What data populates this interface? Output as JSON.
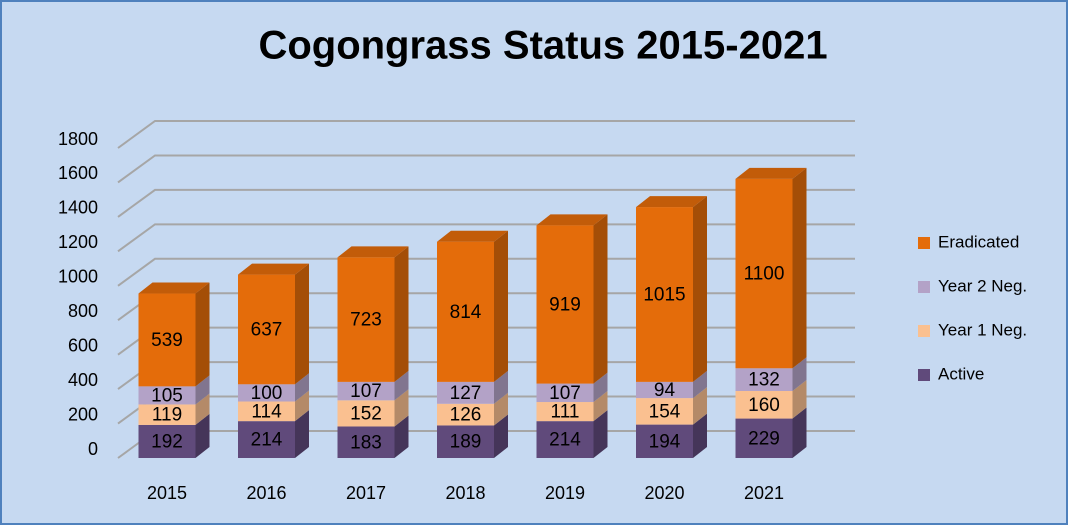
{
  "chart_data": {
    "type": "bar",
    "stacked": true,
    "title": "Cogongrass Status 2015-2021",
    "categories": [
      "2015",
      "2016",
      "2017",
      "2018",
      "2019",
      "2020",
      "2021"
    ],
    "series": [
      {
        "name": "Active",
        "color": "#604a7b",
        "values": [
          192,
          214,
          183,
          189,
          214,
          194,
          229
        ]
      },
      {
        "name": "Year 1 Neg.",
        "color": "#fac090",
        "values": [
          119,
          114,
          152,
          126,
          111,
          154,
          160
        ]
      },
      {
        "name": "Year 2 Neg.",
        "color": "#b3a2c7",
        "values": [
          105,
          100,
          107,
          127,
          107,
          94,
          132
        ]
      },
      {
        "name": "Eradicated",
        "color": "#e46c0a",
        "values": [
          539,
          637,
          723,
          814,
          919,
          1015,
          1100
        ]
      }
    ],
    "ylim": [
      0,
      1800
    ],
    "yticks": [
      0,
      200,
      400,
      600,
      800,
      1000,
      1200,
      1400,
      1600,
      1800
    ],
    "grid": true,
    "legend": "right"
  }
}
